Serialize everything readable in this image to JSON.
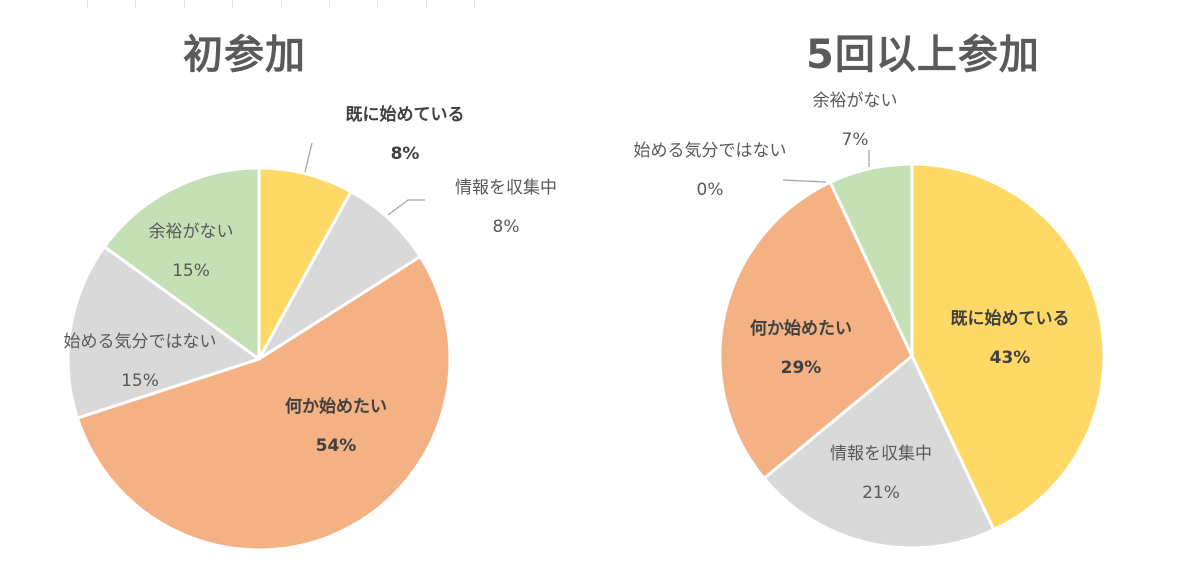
{
  "chart_data": [
    {
      "type": "pie",
      "title": "初参加",
      "start_angle_deg": 0,
      "direction": "clockwise",
      "slices": [
        {
          "label": "既に始めている",
          "value": 8,
          "color": "#FFD966"
        },
        {
          "label": "情報を収集中",
          "value": 8,
          "color": "#D9D9D9"
        },
        {
          "label": "何か始めたい",
          "value": 54,
          "color": "#F4B183"
        },
        {
          "label": "始める気分ではない",
          "value": 15,
          "color": "#D9D9D9"
        },
        {
          "label": "余裕がない",
          "value": 15,
          "color": "#C5E0B4"
        }
      ],
      "data_labels": [
        "8%",
        "8%",
        "54%",
        "15%",
        "15%"
      ]
    },
    {
      "type": "pie",
      "title": "5回以上参加",
      "start_angle_deg": 0,
      "direction": "clockwise",
      "slices": [
        {
          "label": "既に始めている",
          "value": 43,
          "color": "#FFD966"
        },
        {
          "label": "情報を収集中",
          "value": 21,
          "color": "#D9D9D9"
        },
        {
          "label": "何か始めたい",
          "value": 29,
          "color": "#F4B183"
        },
        {
          "label": "始める気分ではない",
          "value": 0,
          "color": "#D9D9D9"
        },
        {
          "label": "余裕がない",
          "value": 7,
          "color": "#C5E0B4"
        }
      ],
      "data_labels": [
        "43%",
        "21%",
        "29%",
        "0%",
        "7%"
      ]
    }
  ],
  "left": {
    "title": "初参加",
    "labels": {
      "started": {
        "name": "既に始めている",
        "pct": "8%"
      },
      "info": {
        "name": "情報を収集中",
        "pct": "8%"
      },
      "want": {
        "name": "何か始めたい",
        "pct": "54%"
      },
      "nomood": {
        "name": "始める気分ではない",
        "pct": "15%"
      },
      "noroom": {
        "name": "余裕がない",
        "pct": "15%"
      }
    }
  },
  "right": {
    "title": "5回以上参加",
    "labels": {
      "started": {
        "name": "既に始めている",
        "pct": "43%"
      },
      "info": {
        "name": "情報を収集中",
        "pct": "21%"
      },
      "want": {
        "name": "何か始めたい",
        "pct": "29%"
      },
      "nomood": {
        "name": "始める気分ではない",
        "pct": "0%"
      },
      "noroom": {
        "name": "余裕がない",
        "pct": "7%"
      }
    }
  }
}
